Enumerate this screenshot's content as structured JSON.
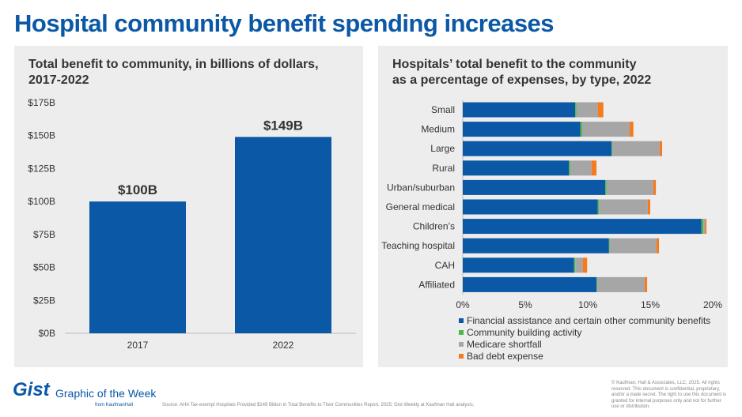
{
  "title": "Hospital community benefit spending increases",
  "footer": {
    "logo": "Gist",
    "graphic_of_week": "Graphic of the Week",
    "from": "from KaufmanHall",
    "source": "Source: AHA Tax-exempt Hospitals Provided $149 Billion in Total Benefits to Their Communities Report, 2025; Gist Weekly at Kaufman Hall analysis.",
    "copyright": "© Kaufman, Hall & Associates, LLC, 2025. All rights reserved. This document is confidential, proprietary, and/or a trade secret. The right to use this document is granted for internal purposes only and not for further use or distribution."
  },
  "chart_data": [
    {
      "type": "bar",
      "title": "Total benefit to community, in billions of dollars, 2017-2022",
      "categories": [
        "2017",
        "2022"
      ],
      "values": [
        100,
        149
      ],
      "data_labels": [
        "$100B",
        "$149B"
      ],
      "ylim": [
        0,
        175
      ],
      "yticks": [
        "$0B",
        "$25B",
        "$50B",
        "$75B",
        "$100B",
        "$125B",
        "$150B",
        "$175B"
      ],
      "color": "#0a58a6",
      "grid": false
    },
    {
      "type": "bar",
      "orientation": "horizontal",
      "stacked": true,
      "title": "Hospitals’ total benefit to the community as a percentage of expenses, by type, 2022",
      "categories": [
        "Small",
        "Medium",
        "Large",
        "Rural",
        "Urban/suburban",
        "General medical",
        "Children’s",
        "Teaching hospital",
        "CAH",
        "Affiliated"
      ],
      "xlim": [
        0,
        20
      ],
      "xticks": [
        "0%",
        "5%",
        "10%",
        "15%",
        "20%"
      ],
      "legend_position": "bottom",
      "grid": false,
      "series": [
        {
          "name": "Financial assistance and certain other community benefits",
          "color": "#0a58a6",
          "values": [
            9.0,
            9.4,
            11.9,
            8.5,
            11.4,
            10.8,
            19.1,
            11.7,
            8.9,
            10.7
          ]
        },
        {
          "name": "Community building activity",
          "color": "#4cb848",
          "values": [
            0.1,
            0.15,
            0.05,
            0.1,
            0.1,
            0.1,
            0.15,
            0.05,
            0.1,
            0.05
          ]
        },
        {
          "name": "Medicare shortfall",
          "color": "#a6a6a6",
          "values": [
            1.7,
            3.8,
            3.8,
            1.7,
            3.75,
            3.9,
            0.15,
            3.75,
            0.6,
            3.8
          ]
        },
        {
          "name": "Bad debt expense",
          "color": "#f47b20",
          "values": [
            0.45,
            0.3,
            0.2,
            0.4,
            0.2,
            0.2,
            0.1,
            0.2,
            0.35,
            0.2
          ]
        }
      ]
    }
  ]
}
